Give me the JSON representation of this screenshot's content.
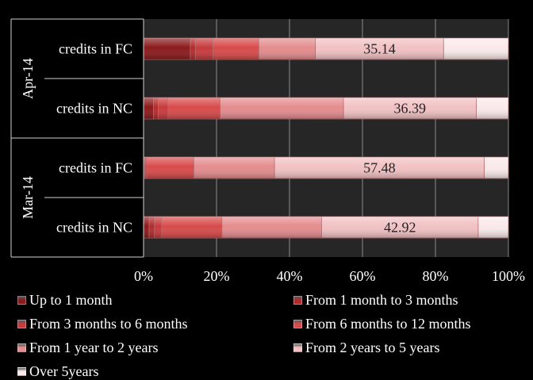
{
  "chart_data": {
    "type": "bar",
    "orientation": "horizontal",
    "stacked": "percent",
    "title": "",
    "xlabel": "",
    "ylabel": "",
    "xlim": [
      0,
      100
    ],
    "x_ticks": [
      "0%",
      "20%",
      "40%",
      "60%",
      "80%",
      "100%"
    ],
    "grid": true,
    "legend_position": "bottom",
    "groups": [
      {
        "label": "Apr-14",
        "categories": [
          "credits in FC",
          "credits in NC"
        ]
      },
      {
        "label": "Mar-14",
        "categories": [
          "credits in FC",
          "credits in NC"
        ]
      }
    ],
    "categories": [
      "Apr-14 credits in FC",
      "Apr-14 credits in NC",
      "Mar-14 credits in FC",
      "Mar-14 credits in NC"
    ],
    "series": [
      {
        "name": "Up to 1 month",
        "color": "#8b1a1c",
        "values": [
          12.8,
          2.7,
          0.3,
          1.5
        ]
      },
      {
        "name": "From 1 month to 3 months",
        "color": "#b32a2c",
        "values": [
          1.4,
          1.3,
          0.3,
          1.5
        ]
      },
      {
        "name": "From 3 months to 6 months",
        "color": "#c73a3c",
        "values": [
          4.8,
          2.7,
          0.3,
          2.0
        ]
      },
      {
        "name": "From 6 months to 12 months",
        "color": "#d84a4a",
        "values": [
          12.6,
          14.3,
          12.9,
          16.5
        ]
      },
      {
        "name": "From 1 year to 2 years",
        "color": "#e48c8e",
        "values": [
          15.5,
          33.8,
          22.1,
          27.3
        ]
      },
      {
        "name": "From 2 years to 5 years",
        "color": "#f1c1c3",
        "values": [
          35.14,
          36.39,
          57.48,
          42.92
        ]
      },
      {
        "name": "Over 5years",
        "color": "#fae9ea",
        "values": [
          17.76,
          8.81,
          6.62,
          8.28
        ]
      }
    ],
    "data_labels": [
      {
        "category_index": 0,
        "series": "From 2 years to 5 years",
        "text": "35.14"
      },
      {
        "category_index": 1,
        "series": "From 2 years to 5 years",
        "text": "36.39"
      },
      {
        "category_index": 2,
        "series": "From 2 years to 5 years",
        "text": "57.48"
      },
      {
        "category_index": 3,
        "series": "From 2 years to 5 years",
        "text": "42.92"
      }
    ]
  }
}
